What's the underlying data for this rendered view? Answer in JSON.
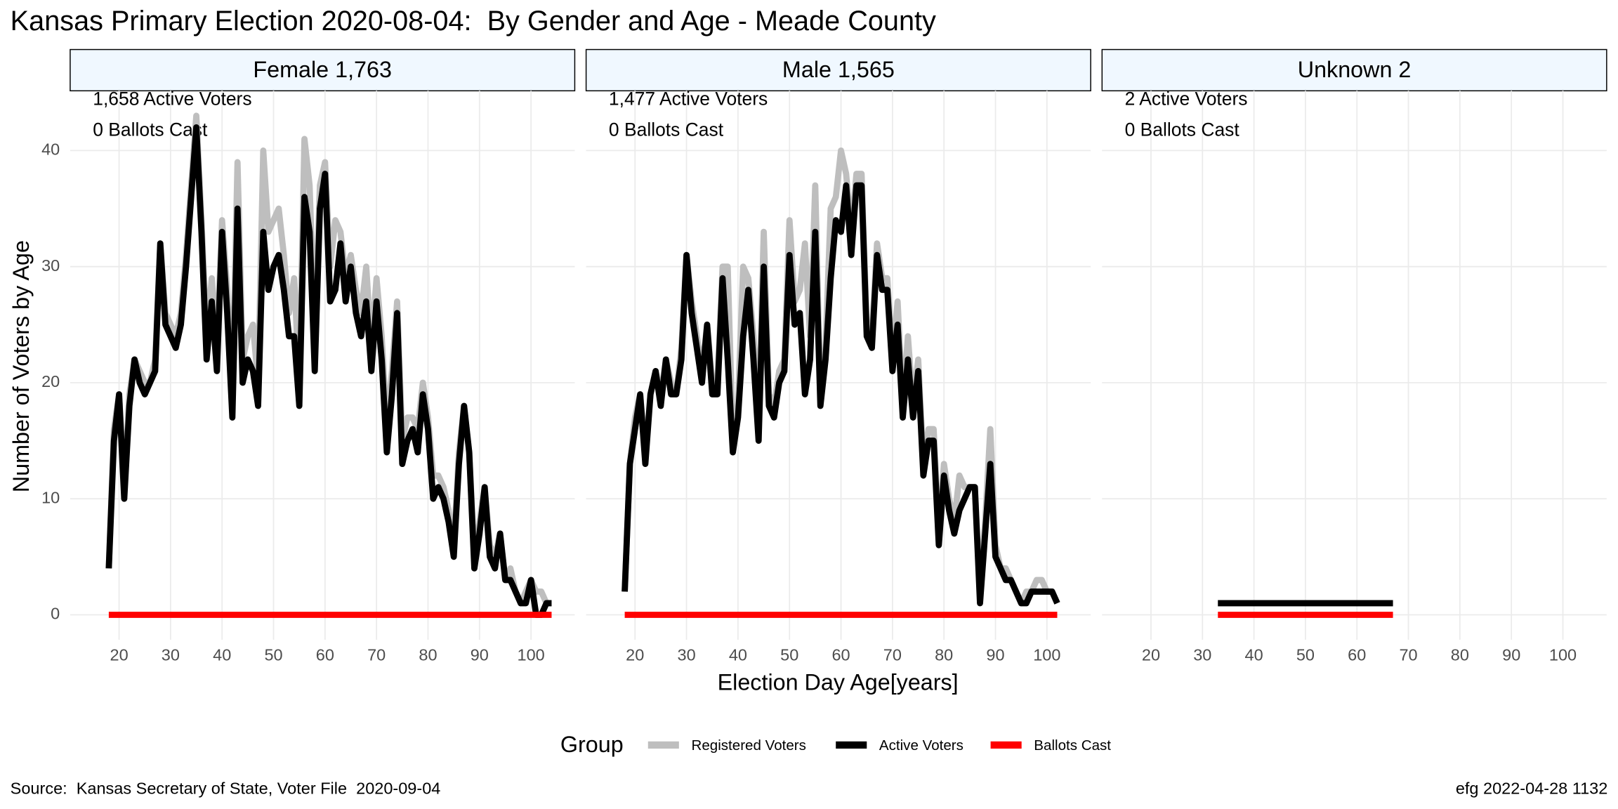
{
  "title": "Kansas Primary Election 2020-08-04:  By Gender and Age - Meade County",
  "x_label": "Election Day Age[years]",
  "y_label": "Number of Voters by Age",
  "legend_title": "Group",
  "source": "Source:  Kansas Secretary of State, Voter File  2020-09-04",
  "credit": "efg 2022-04-28 1132",
  "chart_data": [
    {
      "type": "line",
      "title": "Female 1,763",
      "annotations": [
        "1,658 Active Voters",
        "0 Ballots Cast"
      ],
      "xlim": [
        10.5,
        108.5
      ],
      "xticks": [
        20,
        30,
        40,
        50,
        60,
        70,
        80,
        90,
        100
      ],
      "ylim": [
        -2.15,
        45.15
      ],
      "yticks": [
        0,
        10,
        20,
        30,
        40
      ],
      "grid": true,
      "x": [
        18,
        19,
        20,
        21,
        22,
        23,
        24,
        25,
        26,
        27,
        28,
        29,
        30,
        31,
        32,
        33,
        34,
        35,
        36,
        37,
        38,
        39,
        40,
        41,
        42,
        43,
        44,
        45,
        46,
        47,
        48,
        49,
        50,
        51,
        52,
        53,
        54,
        55,
        56,
        57,
        58,
        59,
        60,
        61,
        62,
        63,
        64,
        65,
        66,
        67,
        68,
        69,
        70,
        71,
        72,
        73,
        74,
        75,
        76,
        77,
        78,
        79,
        80,
        81,
        82,
        83,
        84,
        85,
        86,
        87,
        88,
        89,
        90,
        91,
        92,
        93,
        94,
        95,
        96,
        97,
        98,
        99,
        100,
        101,
        102,
        103,
        104
      ],
      "series": [
        {
          "name": "Registered Voters",
          "color": "#bebebe",
          "values": [
            4,
            16,
            19,
            11,
            19,
            22,
            21,
            20,
            20,
            22,
            32,
            26,
            25,
            24,
            26,
            31,
            37,
            43,
            34,
            24,
            29,
            23,
            34,
            28,
            19,
            39,
            22,
            24,
            25,
            20,
            40,
            33,
            34,
            35,
            31,
            26,
            29,
            20,
            41,
            37,
            24,
            37,
            39,
            30,
            34,
            33,
            29,
            31,
            28,
            26,
            30,
            23,
            29,
            24,
            16,
            21,
            27,
            15,
            17,
            17,
            16,
            20,
            17,
            12,
            12,
            11,
            9,
            6,
            14,
            18,
            14,
            5,
            8,
            11,
            6,
            5,
            7,
            3,
            4,
            2,
            1,
            2,
            3,
            2,
            2,
            1,
            1
          ]
        },
        {
          "name": "Active Voters",
          "color": "#000000",
          "values": [
            4,
            15,
            19,
            10,
            18,
            22,
            20,
            19,
            20,
            21,
            32,
            25,
            24,
            23,
            25,
            30,
            36,
            42,
            33,
            22,
            27,
            21,
            33,
            26,
            17,
            35,
            20,
            22,
            21,
            18,
            33,
            28,
            30,
            31,
            28,
            24,
            24,
            18,
            36,
            33,
            21,
            35,
            38,
            27,
            28,
            32,
            27,
            30,
            26,
            24,
            27,
            21,
            27,
            22,
            14,
            19,
            26,
            13,
            15,
            16,
            14,
            19,
            16,
            10,
            11,
            10,
            8,
            5,
            13,
            18,
            14,
            4,
            7,
            11,
            5,
            4,
            7,
            3,
            3,
            2,
            1,
            1,
            3,
            0,
            0,
            1,
            1
          ]
        },
        {
          "name": "Ballots Cast",
          "color": "#ff0000",
          "values": [
            0,
            0,
            0,
            0,
            0,
            0,
            0,
            0,
            0,
            0,
            0,
            0,
            0,
            0,
            0,
            0,
            0,
            0,
            0,
            0,
            0,
            0,
            0,
            0,
            0,
            0,
            0,
            0,
            0,
            0,
            0,
            0,
            0,
            0,
            0,
            0,
            0,
            0,
            0,
            0,
            0,
            0,
            0,
            0,
            0,
            0,
            0,
            0,
            0,
            0,
            0,
            0,
            0,
            0,
            0,
            0,
            0,
            0,
            0,
            0,
            0,
            0,
            0,
            0,
            0,
            0,
            0,
            0,
            0,
            0,
            0,
            0,
            0,
            0,
            0,
            0,
            0,
            0,
            0,
            0,
            0,
            0,
            0,
            0,
            0,
            0,
            0
          ]
        }
      ]
    },
    {
      "type": "line",
      "title": "Male 1,565",
      "annotations": [
        "1,477 Active Voters",
        "0 Ballots Cast"
      ],
      "xlim": [
        10.5,
        108.5
      ],
      "xticks": [
        20,
        30,
        40,
        50,
        60,
        70,
        80,
        90,
        100
      ],
      "ylim": [
        -2.15,
        45.15
      ],
      "yticks": [
        0,
        10,
        20,
        30,
        40
      ],
      "grid": true,
      "x": [
        18,
        19,
        20,
        21,
        22,
        23,
        24,
        25,
        26,
        27,
        28,
        29,
        30,
        31,
        32,
        33,
        34,
        35,
        36,
        37,
        38,
        39,
        40,
        41,
        42,
        43,
        44,
        45,
        46,
        47,
        48,
        49,
        50,
        51,
        52,
        53,
        54,
        55,
        56,
        57,
        58,
        59,
        60,
        61,
        62,
        63,
        64,
        65,
        66,
        67,
        68,
        69,
        70,
        71,
        72,
        73,
        74,
        75,
        76,
        77,
        78,
        79,
        80,
        81,
        82,
        83,
        84,
        85,
        86,
        87,
        88,
        89,
        90,
        91,
        92,
        93,
        94,
        95,
        96,
        97,
        98,
        99,
        100,
        101,
        102
      ],
      "series": [
        {
          "name": "Registered Voters",
          "color": "#bebebe",
          "values": [
            2,
            13,
            17,
            19,
            14,
            19,
            21,
            19,
            22,
            20,
            19,
            23,
            31,
            27,
            24,
            21,
            25,
            20,
            20,
            30,
            30,
            15,
            18,
            30,
            29,
            24,
            17,
            33,
            19,
            18,
            21,
            22,
            34,
            27,
            28,
            32,
            24,
            37,
            19,
            23,
            35,
            36,
            40,
            38,
            33,
            38,
            38,
            25,
            24,
            32,
            29,
            29,
            22,
            27,
            18,
            24,
            18,
            22,
            13,
            16,
            16,
            7,
            13,
            10,
            8,
            12,
            11,
            11,
            11,
            2,
            8,
            16,
            6,
            4,
            4,
            3,
            2,
            1,
            2,
            2,
            3,
            3,
            2,
            2,
            1
          ]
        },
        {
          "name": "Active Voters",
          "color": "#000000",
          "values": [
            2,
            13,
            16,
            19,
            13,
            19,
            21,
            18,
            22,
            19,
            19,
            22,
            31,
            26,
            23,
            20,
            25,
            19,
            19,
            29,
            22,
            14,
            17,
            24,
            28,
            22,
            15,
            30,
            18,
            17,
            20,
            21,
            31,
            25,
            26,
            19,
            22,
            33,
            18,
            22,
            29,
            34,
            33,
            37,
            31,
            37,
            37,
            24,
            23,
            31,
            28,
            28,
            21,
            25,
            17,
            22,
            17,
            21,
            12,
            15,
            15,
            6,
            12,
            9,
            7,
            9,
            10,
            11,
            11,
            1,
            7,
            13,
            5,
            4,
            3,
            3,
            2,
            1,
            1,
            2,
            2,
            2,
            2,
            2,
            1
          ]
        },
        {
          "name": "Ballots Cast",
          "color": "#ff0000",
          "values": [
            0,
            0,
            0,
            0,
            0,
            0,
            0,
            0,
            0,
            0,
            0,
            0,
            0,
            0,
            0,
            0,
            0,
            0,
            0,
            0,
            0,
            0,
            0,
            0,
            0,
            0,
            0,
            0,
            0,
            0,
            0,
            0,
            0,
            0,
            0,
            0,
            0,
            0,
            0,
            0,
            0,
            0,
            0,
            0,
            0,
            0,
            0,
            0,
            0,
            0,
            0,
            0,
            0,
            0,
            0,
            0,
            0,
            0,
            0,
            0,
            0,
            0,
            0,
            0,
            0,
            0,
            0,
            0,
            0,
            0,
            0,
            0,
            0,
            0,
            0,
            0,
            0,
            0,
            0,
            0,
            0,
            0,
            0,
            0,
            0
          ]
        }
      ]
    },
    {
      "type": "line",
      "title": "Unknown 2",
      "annotations": [
        "2 Active Voters",
        "0 Ballots Cast"
      ],
      "xlim": [
        10.5,
        108.5
      ],
      "xticks": [
        20,
        30,
        40,
        50,
        60,
        70,
        80,
        90,
        100
      ],
      "ylim": [
        -2.15,
        45.15
      ],
      "yticks": [
        0,
        10,
        20,
        30,
        40
      ],
      "grid": true,
      "x": [
        33,
        67
      ],
      "series": [
        {
          "name": "Registered Voters",
          "color": "#bebebe",
          "values": [
            1,
            1
          ]
        },
        {
          "name": "Active Voters",
          "color": "#000000",
          "values": [
            1,
            1
          ]
        },
        {
          "name": "Ballots Cast",
          "color": "#ff0000",
          "values": [
            0,
            0
          ]
        }
      ]
    }
  ]
}
